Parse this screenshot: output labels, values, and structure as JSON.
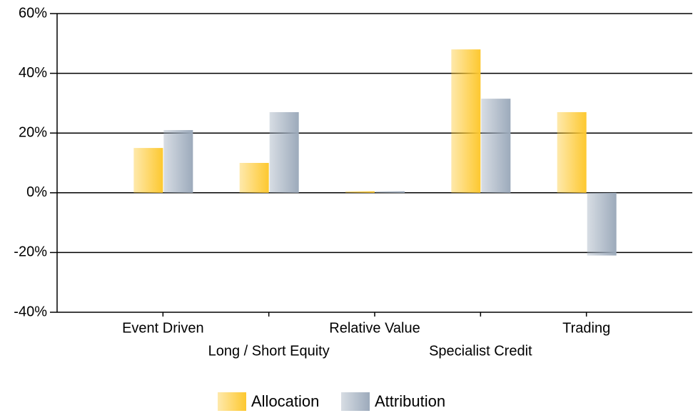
{
  "chart_data": {
    "type": "bar",
    "categories": [
      "Event Driven",
      "Long / Short Equity",
      "Relative Value",
      "Specialist Credit",
      "Trading"
    ],
    "series": [
      {
        "name": "Allocation",
        "color": "#fdc82f",
        "values": [
          15,
          10,
          0.5,
          48,
          27
        ]
      },
      {
        "name": "Attribution",
        "color": "#9caabb",
        "values": [
          21,
          27,
          0.5,
          31.5,
          -21
        ]
      }
    ],
    "ylim": [
      -40,
      60
    ],
    "yticks": [
      {
        "value": -40,
        "label": "-40%"
      },
      {
        "value": -20,
        "label": "-20%"
      },
      {
        "value": 0,
        "label": "0%"
      },
      {
        "value": 20,
        "label": "20%"
      },
      {
        "value": 40,
        "label": "40%"
      },
      {
        "value": 60,
        "label": "60%"
      }
    ],
    "grid": true,
    "legend": "bottom"
  }
}
